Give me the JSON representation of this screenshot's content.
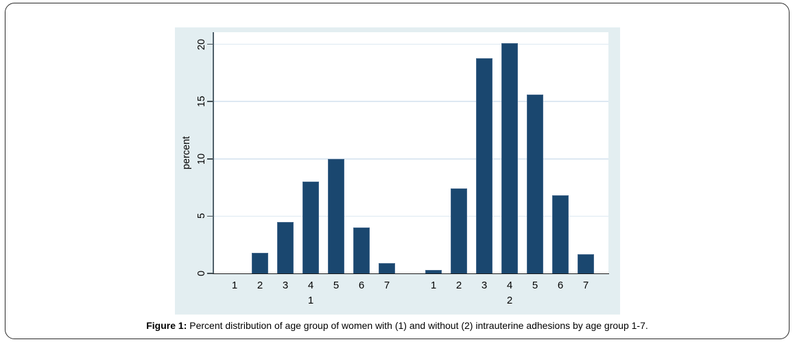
{
  "figure": {
    "caption_prefix": "Figure 1:",
    "caption_text": "Percent distribution of age group of women with (1) and without (2) intrauterine adhesions by age group 1-7."
  },
  "chart_data": {
    "type": "bar",
    "title": "",
    "xlabel": "",
    "ylabel": "percent",
    "ylim": [
      0,
      21
    ],
    "yticks": [
      0,
      5,
      10,
      15,
      20
    ],
    "grid": true,
    "legend": "none",
    "groups": [
      {
        "label": "1",
        "categories": [
          "1",
          "2",
          "3",
          "4",
          "5",
          "6",
          "7"
        ],
        "values": [
          0,
          1.8,
          4.5,
          8.0,
          10.0,
          4.0,
          0.9
        ]
      },
      {
        "label": "2",
        "categories": [
          "1",
          "2",
          "3",
          "4",
          "5",
          "6",
          "7"
        ],
        "values": [
          0.3,
          7.4,
          18.8,
          20.1,
          15.6,
          6.8,
          1.7
        ]
      }
    ],
    "colors": {
      "bar_fill": "#1a476f",
      "bar_outline": "#44688c",
      "plot_background": "#ffffff",
      "graph_background": "#e3eef1",
      "gridline": "#dde8f2",
      "axis_line": "#191919",
      "text": "#000000"
    }
  }
}
